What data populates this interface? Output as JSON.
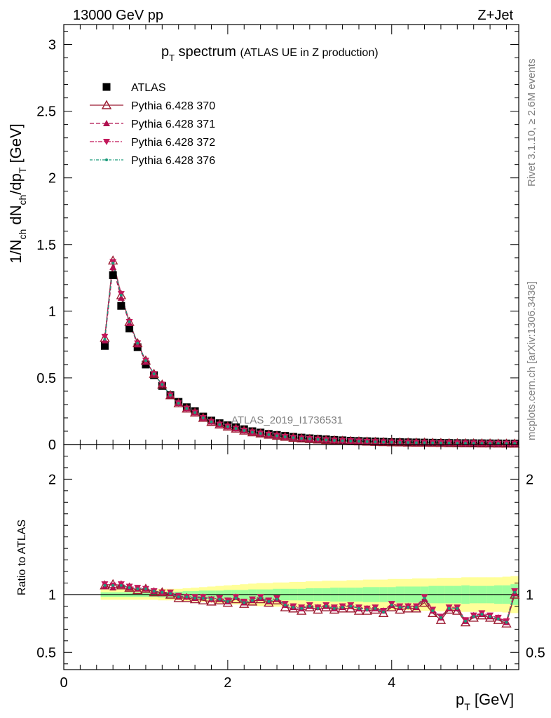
{
  "header": {
    "energy_label": "13000 GeV pp",
    "process_label": "Z+Jet"
  },
  "side_labels": {
    "rivet": "Rivet 3.1.10, ≥ 2.6M events",
    "mcplots": "mcplots.cern.ch [arXiv:1306.3436]"
  },
  "watermark": "ATLAS_2019_I1736531",
  "chart_data": [
    {
      "type": "scatter",
      "panel": "main",
      "title_main": "p",
      "title_sub": "T",
      "title_rest": "spectrum",
      "title_paren": "(ATLAS UE in Z production)",
      "ylabel": "1/N_ch dN_ch/dp_T [GeV]",
      "xlim": [
        0,
        5.55
      ],
      "ylim": [
        0,
        3.15
      ],
      "y_ticks": [
        "0",
        "0.5",
        "1",
        "1.5",
        "2",
        "2.5",
        "3"
      ],
      "x_ticks": [
        "0",
        "2",
        "4"
      ],
      "legend_position": "top-left",
      "x": [
        0.5,
        0.6,
        0.7,
        0.8,
        0.9,
        1.0,
        1.1,
        1.2,
        1.3,
        1.4,
        1.5,
        1.6,
        1.7,
        1.8,
        1.9,
        2.0,
        2.1,
        2.2,
        2.3,
        2.4,
        2.5,
        2.6,
        2.7,
        2.8,
        2.9,
        3.0,
        3.1,
        3.2,
        3.3,
        3.4,
        3.5,
        3.6,
        3.7,
        3.8,
        3.9,
        4.0,
        4.1,
        4.2,
        4.3,
        4.4,
        4.5,
        4.6,
        4.7,
        4.8,
        4.9,
        5.0,
        5.1,
        5.2,
        5.3,
        5.4,
        5.5
      ],
      "series": [
        {
          "name": "ATLAS",
          "marker": "square",
          "color": "#000000",
          "values": [
            0.74,
            1.27,
            1.04,
            0.87,
            0.73,
            0.6,
            0.52,
            0.44,
            0.37,
            0.32,
            0.28,
            0.25,
            0.21,
            0.18,
            0.16,
            0.145,
            0.13,
            0.115,
            0.1,
            0.09,
            0.08,
            0.072,
            0.065,
            0.058,
            0.052,
            0.047,
            0.043,
            0.039,
            0.035,
            0.032,
            0.029,
            0.027,
            0.025,
            0.023,
            0.021,
            0.019,
            0.018,
            0.017,
            0.016,
            0.015,
            0.014,
            0.013,
            0.012,
            0.011,
            0.0105,
            0.01,
            0.0095,
            0.009,
            0.0085,
            0.008,
            0.0075
          ]
        },
        {
          "name": "Pythia 6.428 370",
          "marker": "open-triangle-up",
          "color": "#9b1b30",
          "dash": "",
          "values": [
            0.8,
            1.38,
            1.12,
            0.92,
            0.76,
            0.63,
            0.53,
            0.45,
            0.37,
            0.31,
            0.27,
            0.24,
            0.2,
            0.17,
            0.15,
            0.135,
            0.12,
            0.105,
            0.092,
            0.083,
            0.074,
            0.066,
            0.058,
            0.051,
            0.046,
            0.042,
            0.038,
            0.034,
            0.031,
            0.028,
            0.026,
            0.024,
            0.022,
            0.02,
            0.018,
            0.017,
            0.016,
            0.015,
            0.014,
            0.014,
            0.013,
            0.012,
            0.011,
            0.01,
            0.0095,
            0.009,
            0.0085,
            0.008,
            0.0075,
            0.007,
            0.007
          ]
        },
        {
          "name": "Pythia 6.428 371",
          "marker": "triangle-up",
          "color": "#b0104f",
          "dash": "6,3",
          "values": [
            0.78,
            1.33,
            1.1,
            0.91,
            0.75,
            0.62,
            0.53,
            0.45,
            0.37,
            0.31,
            0.27,
            0.24,
            0.2,
            0.17,
            0.15,
            0.135,
            0.12,
            0.105,
            0.092,
            0.083,
            0.074,
            0.066,
            0.058,
            0.051,
            0.046,
            0.042,
            0.038,
            0.034,
            0.031,
            0.028,
            0.026,
            0.024,
            0.022,
            0.02,
            0.018,
            0.017,
            0.016,
            0.015,
            0.014,
            0.014,
            0.013,
            0.012,
            0.011,
            0.01,
            0.0095,
            0.009,
            0.0085,
            0.008,
            0.0075,
            0.007,
            0.007
          ]
        },
        {
          "name": "Pythia 6.428 372",
          "marker": "triangle-down",
          "color": "#c2185b",
          "dash": "6,2,2,2",
          "values": [
            0.81,
            1.37,
            1.13,
            0.92,
            0.76,
            0.63,
            0.53,
            0.45,
            0.37,
            0.31,
            0.27,
            0.24,
            0.2,
            0.17,
            0.15,
            0.135,
            0.12,
            0.105,
            0.092,
            0.083,
            0.074,
            0.066,
            0.058,
            0.051,
            0.046,
            0.042,
            0.038,
            0.034,
            0.031,
            0.028,
            0.026,
            0.024,
            0.022,
            0.02,
            0.018,
            0.017,
            0.016,
            0.015,
            0.014,
            0.014,
            0.013,
            0.012,
            0.011,
            0.01,
            0.0095,
            0.009,
            0.0085,
            0.008,
            0.0075,
            0.007,
            0.007
          ]
        },
        {
          "name": "Pythia 6.428 376",
          "marker": "dot",
          "color": "#1a9a7a",
          "dash": "4,2,1,2",
          "values": [
            0.79,
            1.36,
            1.12,
            0.92,
            0.76,
            0.63,
            0.53,
            0.45,
            0.37,
            0.31,
            0.27,
            0.24,
            0.2,
            0.17,
            0.15,
            0.135,
            0.12,
            0.105,
            0.092,
            0.083,
            0.074,
            0.066,
            0.058,
            0.051,
            0.046,
            0.042,
            0.038,
            0.034,
            0.031,
            0.028,
            0.026,
            0.024,
            0.022,
            0.02,
            0.018,
            0.017,
            0.016,
            0.015,
            0.014,
            0.014,
            0.013,
            0.012,
            0.011,
            0.01,
            0.0095,
            0.009,
            0.0085,
            0.008,
            0.0075,
            0.007,
            0.007
          ]
        }
      ]
    },
    {
      "type": "line",
      "panel": "ratio",
      "ylabel": "Ratio to ATLAS",
      "xlabel": "p_T [GeV]",
      "xlim": [
        0,
        5.55
      ],
      "ylim": [
        0.35,
        2.3
      ],
      "y_ticks": [
        "0.5",
        "1",
        "2"
      ],
      "x_ticks": [
        "0",
        "2",
        "4"
      ],
      "band_colors": {
        "inner": "#9cff9c",
        "outer": "#ffff99"
      },
      "band_inner": [
        0.02,
        0.02,
        0.02,
        0.02,
        0.02,
        0.02,
        0.02,
        0.025,
        0.025,
        0.025,
        0.03,
        0.03,
        0.035,
        0.035,
        0.035,
        0.04,
        0.04,
        0.04,
        0.045,
        0.045,
        0.045,
        0.05,
        0.05,
        0.05,
        0.05,
        0.055,
        0.055,
        0.055,
        0.06,
        0.06,
        0.06,
        0.06,
        0.065,
        0.065,
        0.065,
        0.065,
        0.07,
        0.07,
        0.07,
        0.07,
        0.075,
        0.075,
        0.075,
        0.075,
        0.08,
        0.075,
        0.075,
        0.075,
        0.08,
        0.08,
        0.09
      ],
      "band_outer": [
        0.045,
        0.045,
        0.045,
        0.045,
        0.045,
        0.045,
        0.045,
        0.05,
        0.05,
        0.05,
        0.055,
        0.06,
        0.065,
        0.07,
        0.075,
        0.08,
        0.085,
        0.09,
        0.095,
        0.1,
        0.1,
        0.105,
        0.105,
        0.11,
        0.11,
        0.115,
        0.115,
        0.12,
        0.12,
        0.12,
        0.125,
        0.125,
        0.13,
        0.13,
        0.13,
        0.135,
        0.135,
        0.135,
        0.14,
        0.14,
        0.14,
        0.145,
        0.145,
        0.145,
        0.15,
        0.15,
        0.15,
        0.15,
        0.15,
        0.155,
        0.16
      ],
      "ratios": [
        [
          1.08,
          1.09,
          1.08,
          1.06,
          1.04,
          1.05,
          1.02,
          1.02,
          1.0,
          0.97,
          0.97,
          0.96,
          0.95,
          0.94,
          0.95,
          0.93,
          0.96,
          0.92,
          0.94,
          0.96,
          0.93,
          0.95,
          0.89,
          0.88,
          0.86,
          0.89,
          0.87,
          0.89,
          0.87,
          0.88,
          0.88,
          0.86,
          0.86,
          0.87,
          0.84,
          0.89,
          0.87,
          0.88,
          0.88,
          0.93,
          0.84,
          0.78,
          0.87,
          0.86,
          0.76,
          0.8,
          0.82,
          0.8,
          0.78,
          0.75,
          1.0
        ],
        [
          1.07,
          1.06,
          1.08,
          1.06,
          1.05,
          1.05,
          1.03,
          1.02,
          1.01,
          0.98,
          0.98,
          0.97,
          0.98,
          0.96,
          0.96,
          0.94,
          0.98,
          0.93,
          0.95,
          0.97,
          0.94,
          0.96,
          0.91,
          0.89,
          0.88,
          0.9,
          0.89,
          0.9,
          0.88,
          0.89,
          0.9,
          0.88,
          0.88,
          0.88,
          0.86,
          0.91,
          0.89,
          0.9,
          0.89,
          0.96,
          0.86,
          0.8,
          0.88,
          0.88,
          0.77,
          0.82,
          0.83,
          0.81,
          0.8,
          0.76,
          1.01
        ],
        [
          1.09,
          1.08,
          1.09,
          1.07,
          1.06,
          1.05,
          1.03,
          1.02,
          1.02,
          0.99,
          0.98,
          0.98,
          0.98,
          0.96,
          0.97,
          0.95,
          0.98,
          0.94,
          0.96,
          0.98,
          0.95,
          0.97,
          0.92,
          0.9,
          0.89,
          0.91,
          0.89,
          0.91,
          0.89,
          0.9,
          0.91,
          0.89,
          0.88,
          0.89,
          0.86,
          0.92,
          0.9,
          0.9,
          0.9,
          0.98,
          0.87,
          0.81,
          0.89,
          0.89,
          0.78,
          0.82,
          0.84,
          0.82,
          0.8,
          0.77,
          1.03
        ],
        [
          1.08,
          1.08,
          1.08,
          1.06,
          1.05,
          1.05,
          1.03,
          1.02,
          1.01,
          0.98,
          0.98,
          0.97,
          0.97,
          0.96,
          0.96,
          0.94,
          0.97,
          0.93,
          0.95,
          0.97,
          0.94,
          0.96,
          0.91,
          0.89,
          0.88,
          0.9,
          0.88,
          0.9,
          0.88,
          0.89,
          0.9,
          0.88,
          0.87,
          0.88,
          0.85,
          0.91,
          0.89,
          0.89,
          0.89,
          0.97,
          0.86,
          0.8,
          0.88,
          0.88,
          0.77,
          0.81,
          0.83,
          0.81,
          0.79,
          0.76,
          1.02
        ]
      ]
    }
  ]
}
